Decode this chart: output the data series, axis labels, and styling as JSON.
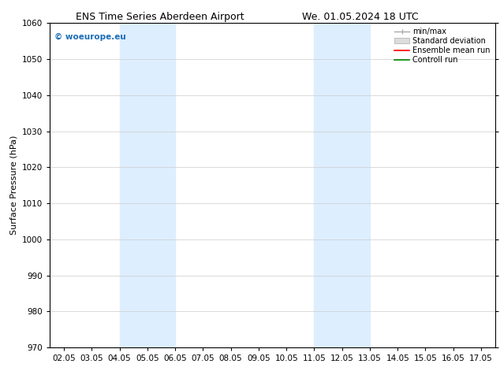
{
  "title_left": "ENS Time Series Aberdeen Airport",
  "title_right": "We. 01.05.2024 18 UTC",
  "xlabel": "",
  "ylabel": "Surface Pressure (hPa)",
  "ylim": [
    970,
    1060
  ],
  "yticks": [
    970,
    980,
    990,
    1000,
    1010,
    1020,
    1030,
    1040,
    1050,
    1060
  ],
  "xlim_start": 1.5,
  "xlim_end": 17.5,
  "xtick_labels": [
    "02.05",
    "03.05",
    "04.05",
    "05.05",
    "06.05",
    "07.05",
    "08.05",
    "09.05",
    "10.05",
    "11.05",
    "12.05",
    "13.05",
    "14.05",
    "15.05",
    "16.05",
    "17.05"
  ],
  "xtick_positions": [
    2.0,
    3.0,
    4.0,
    5.0,
    6.0,
    7.0,
    8.0,
    9.0,
    10.0,
    11.0,
    12.0,
    13.0,
    14.0,
    15.0,
    16.0,
    17.0
  ],
  "shaded_regions": [
    {
      "xmin": 4.0,
      "xmax": 6.0
    },
    {
      "xmin": 11.0,
      "xmax": 13.0
    }
  ],
  "shade_color": "#ddeeff",
  "watermark_text": "© woeurope.eu",
  "watermark_color": "#1a6db5",
  "legend_labels": [
    "min/max",
    "Standard deviation",
    "Ensemble mean run",
    "Controll run"
  ],
  "background_color": "#ffffff",
  "grid_color": "#cccccc",
  "title_fontsize": 9,
  "axis_label_fontsize": 8,
  "tick_fontsize": 7.5
}
